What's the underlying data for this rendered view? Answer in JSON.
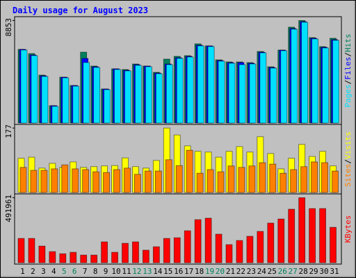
{
  "chart_data": [
    {
      "type": "bar",
      "title": "Daily usage for August 2023",
      "categories": [
        "1",
        "2",
        "3",
        "4",
        "5",
        "6",
        "7",
        "8",
        "9",
        "10",
        "11",
        "12",
        "13",
        "14",
        "15",
        "16",
        "17",
        "18",
        "19",
        "20",
        "21",
        "22",
        "23",
        "24",
        "25",
        "26",
        "27",
        "28",
        "29",
        "30",
        "31"
      ],
      "label_colors": [
        "#000000",
        "#000000",
        "#000000",
        "#000000",
        "#00805C",
        "#00805C",
        "#000000",
        "#000000",
        "#000000",
        "#000000",
        "#000000",
        "#00805C",
        "#00805C",
        "#000000",
        "#000000",
        "#000000",
        "#000000",
        "#000000",
        "#00805C",
        "#00805C",
        "#000000",
        "#000000",
        "#000000",
        "#000000",
        "#000000",
        "#00805C",
        "#00805C",
        "#000000",
        "#000000",
        "#000000",
        "#000000"
      ],
      "separator": "/",
      "series": [
        {
          "name": "Hits",
          "color": "#00805C",
          "values": [
            6360,
            6000,
            4140,
            1500,
            3960,
            3240,
            6120,
            4920,
            2940,
            4680,
            4620,
            5100,
            4920,
            4380,
            5520,
            5760,
            5820,
            6840,
            6660,
            5460,
            5280,
            5280,
            5220,
            6180,
            4860,
            6300,
            8280,
            8853,
            7380,
            6600,
            7320
          ]
        },
        {
          "name": "Files",
          "color": "#0000FF",
          "values": [
            6360,
            5880,
            4080,
            1500,
            3960,
            3240,
            5580,
            4860,
            2940,
            4680,
            4560,
            5040,
            4920,
            4320,
            5100,
            5640,
            5760,
            6720,
            6660,
            5400,
            5220,
            5220,
            5160,
            6120,
            4800,
            6300,
            8160,
            8760,
            7320,
            6540,
            7200
          ]
        },
        {
          "name": "Pages",
          "color": "#00E0FF",
          "values": [
            6300,
            5820,
            4020,
            1440,
            3900,
            3180,
            5220,
            4800,
            2880,
            4620,
            4500,
            4980,
            4860,
            4260,
            5040,
            5580,
            5700,
            6660,
            6600,
            5340,
            5160,
            5040,
            5100,
            6060,
            4740,
            6240,
            8100,
            8700,
            7260,
            6480,
            7140
          ]
        }
      ],
      "ylim": [
        0,
        9000
      ],
      "yticks": [
        8853
      ]
    },
    {
      "type": "bar",
      "series": [
        {
          "name": "Visits",
          "color": "#FFFF00",
          "values": [
            94,
            97,
            67,
            80,
            69,
            84,
            69,
            71,
            73,
            74,
            95,
            71,
            67,
            88,
            177,
            158,
            128,
            113,
            111,
            97,
            113,
            126,
            111,
            153,
            107,
            65,
            94,
            132,
            99,
            113,
            73
          ]
        },
        {
          "name": "Sites",
          "color": "#FF8000",
          "values": [
            69,
            61,
            61,
            65,
            76,
            65,
            63,
            57,
            55,
            63,
            67,
            50,
            59,
            59,
            90,
            74,
            116,
            53,
            63,
            57,
            73,
            69,
            73,
            82,
            78,
            53,
            63,
            71,
            84,
            82,
            59
          ]
        }
      ],
      "ylim": [
        0,
        185
      ],
      "yticks": [
        177
      ]
    },
    {
      "type": "bar",
      "series": [
        {
          "name": "KBytes",
          "color": "#FF0000",
          "values": [
            184000,
            184000,
            126000,
            84000,
            68000,
            79000,
            58000,
            58000,
            158000,
            79000,
            147000,
            158000,
            95000,
            121000,
            184000,
            189000,
            242000,
            326000,
            337000,
            216000,
            137000,
            168000,
            200000,
            237000,
            300000,
            331000,
            405000,
            491961,
            410000,
            410000,
            268000
          ]
        }
      ],
      "ylim": [
        0,
        510000
      ],
      "yticks": [
        491961
      ]
    }
  ]
}
